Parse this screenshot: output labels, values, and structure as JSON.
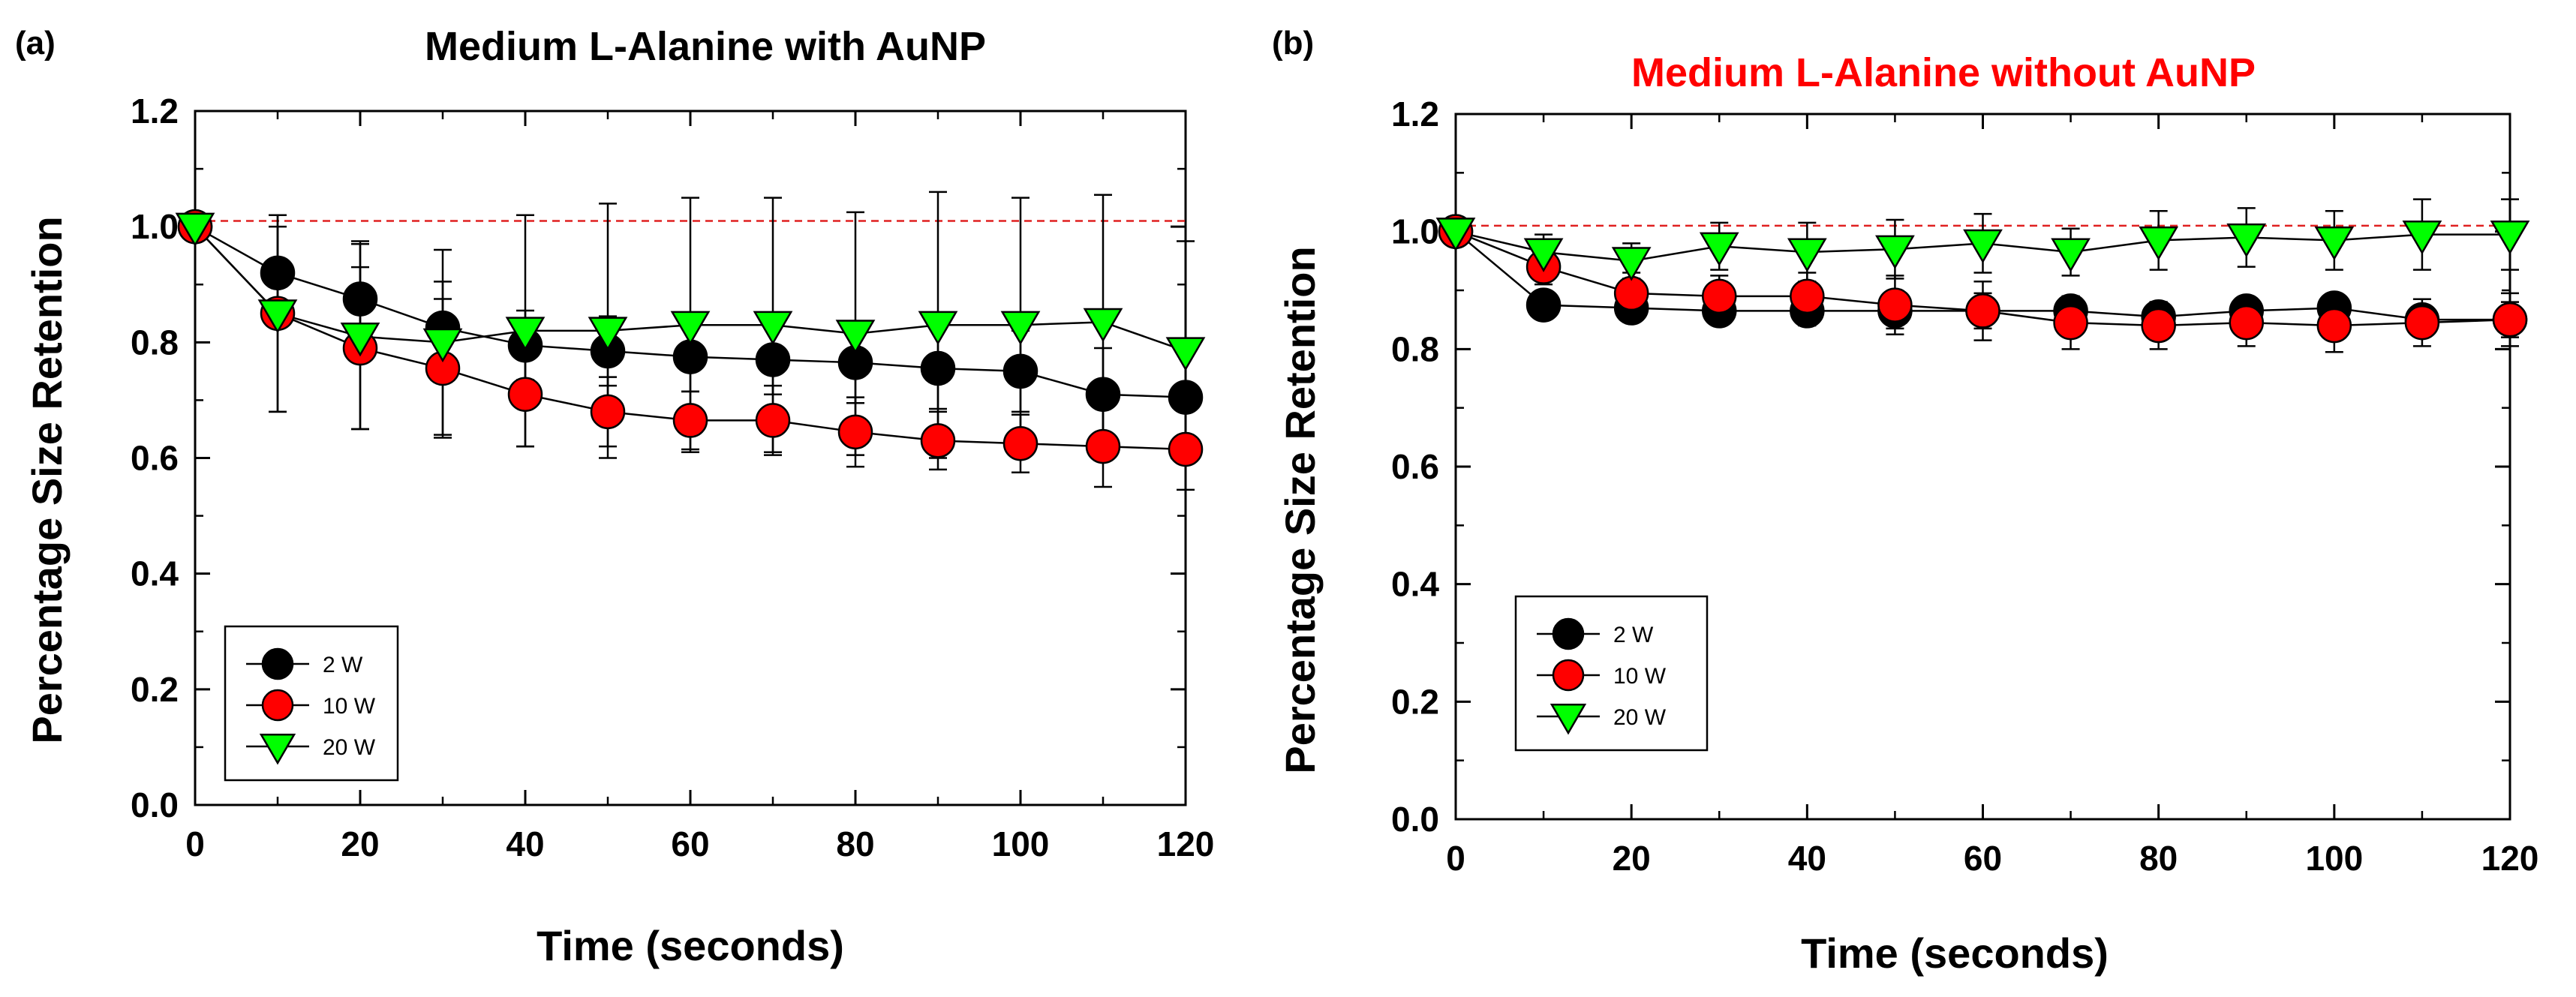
{
  "chart_data": [
    {
      "panel": "(a)",
      "type": "line",
      "title": "Medium L-Alanine with AuNP",
      "title_color": "#000000",
      "xlabel": "Time (seconds)",
      "ylabel": "Percentage Size Retention",
      "xlim": [
        0,
        120
      ],
      "ylim": [
        0.0,
        1.2
      ],
      "xticks": [
        0,
        20,
        40,
        60,
        80,
        100,
        120
      ],
      "yticks": [
        0.0,
        0.2,
        0.4,
        0.6,
        0.8,
        1.0,
        1.2
      ],
      "xtick_labels": [
        "0",
        "20",
        "40",
        "60",
        "80",
        "100",
        "120"
      ],
      "ytick_labels": [
        "0.0",
        "0.2",
        "0.4",
        "0.6",
        "0.8",
        "1.0",
        "1.2"
      ],
      "reference_line": 1.01,
      "reference_color": "#e02020",
      "legend_position": "bottom-left",
      "x": [
        0,
        10,
        20,
        30,
        40,
        50,
        60,
        70,
        80,
        90,
        100,
        110,
        120
      ],
      "series": [
        {
          "name": "2 W",
          "marker": "circle",
          "color": "#000000",
          "values": [
            1.0,
            0.92,
            0.875,
            0.825,
            0.795,
            0.785,
            0.775,
            0.77,
            0.765,
            0.755,
            0.75,
            0.71,
            0.705
          ],
          "errors": [
            0.0,
            0.08,
            0.1,
            0.08,
            0.06,
            0.06,
            0.06,
            0.06,
            0.07,
            0.07,
            0.07,
            0.08,
            0.09
          ]
        },
        {
          "name": "10 W",
          "marker": "circle",
          "color": "#ff0000",
          "values": [
            1.0,
            0.85,
            0.79,
            0.755,
            0.71,
            0.68,
            0.665,
            0.665,
            0.645,
            0.63,
            0.625,
            0.62,
            0.615
          ],
          "errors": [
            0.0,
            0.17,
            0.14,
            0.12,
            0.09,
            0.06,
            0.05,
            0.06,
            0.06,
            0.05,
            0.05,
            0.07,
            0.07
          ]
        },
        {
          "name": "20 W",
          "marker": "triangle",
          "color": "#00ff00",
          "values": [
            1.0,
            0.85,
            0.81,
            0.8,
            0.82,
            0.82,
            0.83,
            0.83,
            0.815,
            0.83,
            0.83,
            0.835,
            0.785
          ],
          "errors": [
            0.0,
            0.17,
            0.16,
            0.16,
            0.2,
            0.22,
            0.22,
            0.22,
            0.21,
            0.23,
            0.22,
            0.22,
            0.19
          ]
        }
      ]
    },
    {
      "panel": "(b)",
      "type": "line",
      "title": "Medium L-Alanine without AuNP",
      "title_color": "#ff0000",
      "xlabel": "Time (seconds)",
      "ylabel": "Percentage Size Retention",
      "xlim": [
        0,
        120
      ],
      "ylim": [
        0.0,
        1.2
      ],
      "xticks": [
        0,
        20,
        40,
        60,
        80,
        100,
        120
      ],
      "yticks": [
        0.0,
        0.2,
        0.4,
        0.6,
        0.8,
        1.0,
        1.2
      ],
      "xtick_labels": [
        "0",
        "20",
        "40",
        "60",
        "80",
        "100",
        "120"
      ],
      "ytick_labels": [
        "0.0",
        "0.2",
        "0.4",
        "0.6",
        "0.8",
        "1.0",
        "1.2"
      ],
      "reference_line": 1.01,
      "reference_color": "#e02020",
      "legend_position": "bottom-left",
      "x": [
        0,
        10,
        20,
        30,
        40,
        50,
        60,
        70,
        80,
        90,
        100,
        110,
        120
      ],
      "series": [
        {
          "name": "2 W",
          "marker": "circle",
          "color": "#000000",
          "values": [
            1.0,
            0.875,
            0.87,
            0.865,
            0.865,
            0.865,
            0.865,
            0.865,
            0.855,
            0.865,
            0.87,
            0.85,
            0.85
          ],
          "errors": [
            0.0,
            0.015,
            0.02,
            0.02,
            0.025,
            0.03,
            0.03,
            0.025,
            0.025,
            0.02,
            0.02,
            0.02,
            0.03
          ]
        },
        {
          "name": "10 W",
          "marker": "circle",
          "color": "#ff0000",
          "values": [
            1.0,
            0.94,
            0.895,
            0.89,
            0.89,
            0.875,
            0.865,
            0.845,
            0.84,
            0.845,
            0.84,
            0.845,
            0.85
          ],
          "errors": [
            0.0,
            0.03,
            0.035,
            0.035,
            0.04,
            0.05,
            0.05,
            0.045,
            0.04,
            0.04,
            0.045,
            0.04,
            0.045
          ]
        },
        {
          "name": "20 W",
          "marker": "triangle",
          "color": "#00ff00",
          "values": [
            1.0,
            0.965,
            0.95,
            0.975,
            0.965,
            0.97,
            0.98,
            0.965,
            0.985,
            0.99,
            0.985,
            0.995,
            0.995
          ],
          "errors": [
            0.0,
            0.03,
            0.03,
            0.04,
            0.05,
            0.05,
            0.05,
            0.04,
            0.05,
            0.05,
            0.05,
            0.06,
            0.06
          ]
        }
      ]
    }
  ]
}
